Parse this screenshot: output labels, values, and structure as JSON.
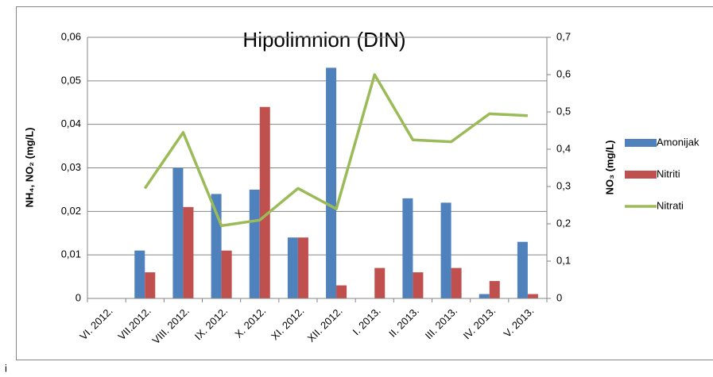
{
  "chart_data": {
    "type": "bar",
    "title": "Hipolimnion (DIN)",
    "ylabel": "NH₄, NO₂ (mg/L)",
    "y2label": "NO₃ (mg/L)",
    "footnote": "i",
    "categories": [
      "VI. 2012.",
      "VII.2012.",
      "VIII. 2012.",
      "IX. 2012.",
      "X. 2012.",
      "XI. 2012.",
      "XII. 2012.",
      "I. 2013.",
      "II. 2013.",
      "III. 2013.",
      "IV. 2013.",
      "V. 2013."
    ],
    "series": [
      {
        "name": "Amonijak",
        "type": "bar",
        "color": "#4f81bd",
        "values": [
          null,
          0.011,
          0.03,
          0.024,
          0.025,
          0.014,
          0.053,
          null,
          0.023,
          0.022,
          0.001,
          0.013
        ]
      },
      {
        "name": "Nitriti",
        "type": "bar",
        "color": "#c0504d",
        "values": [
          null,
          0.006,
          0.021,
          0.011,
          0.044,
          0.014,
          0.003,
          0.007,
          0.006,
          0.007,
          0.004,
          0.001
        ]
      },
      {
        "name": "Nitrati",
        "type": "line",
        "axis": "y2",
        "color": "#9bbb59",
        "values": [
          null,
          0.295,
          0.445,
          0.195,
          0.21,
          0.295,
          0.24,
          0.6,
          0.425,
          0.42,
          0.495,
          0.49
        ]
      }
    ],
    "ylim": [
      0,
      0.06
    ],
    "yticks": [
      0,
      {
        "value": 0.01,
        "label": "0,01"
      },
      {
        "value": 0.02,
        "label": "0,02"
      },
      {
        "value": 0.03,
        "label": "0,03"
      },
      {
        "value": 0.04,
        "label": "0,04"
      },
      {
        "value": 0.05,
        "label": "0,05"
      },
      {
        "value": 0.06,
        "label": "0,06"
      }
    ],
    "y2lim": [
      0,
      0.7
    ],
    "y2ticks": [
      0,
      {
        "value": 0.1,
        "label": "0,1"
      },
      {
        "value": 0.2,
        "label": "0,2"
      },
      {
        "value": 0.3,
        "label": "0,3"
      },
      {
        "value": 0.4,
        "label": "0,4"
      },
      {
        "value": 0.5,
        "label": "0,5"
      },
      {
        "value": 0.6,
        "label": "0,6"
      },
      {
        "value": 0.7,
        "label": "0,7"
      }
    ],
    "grid": true,
    "legend": "right"
  }
}
